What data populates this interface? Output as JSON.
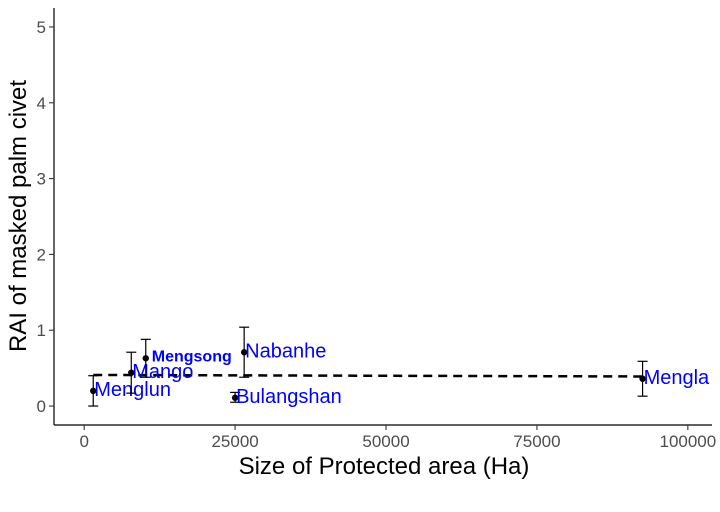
{
  "chart_data": {
    "type": "scatter",
    "title": "",
    "xlabel": "Size of Protected area (Ha)",
    "ylabel": "RAI of masked palm civet",
    "xlim": [
      -5000,
      104000
    ],
    "ylim": [
      -0.25,
      5.25
    ],
    "x_ticks": [
      0,
      25000,
      50000,
      75000,
      100000
    ],
    "x_tick_labels": [
      "0",
      "25000",
      "50000",
      "75000",
      "100000"
    ],
    "y_ticks": [
      0,
      1,
      2,
      3,
      4,
      5
    ],
    "y_tick_labels": [
      "0",
      "1",
      "2",
      "3",
      "4",
      "5"
    ],
    "grid": false,
    "label_color": "#0000ff",
    "points": [
      {
        "label": "Menglun",
        "x": 1500,
        "y": 0.2,
        "ymin": 0.0,
        "ymax": 0.4,
        "bold": false
      },
      {
        "label": "Mango",
        "x": 7800,
        "y": 0.44,
        "ymin": 0.17,
        "ymax": 0.71,
        "bold": false
      },
      {
        "label": "Mengsong",
        "x": 10200,
        "y": 0.63,
        "ymin": 0.38,
        "ymax": 0.88,
        "bold": true
      },
      {
        "label": "Bulangshan",
        "x": 25000,
        "y": 0.11,
        "ymin": 0.05,
        "ymax": 0.18,
        "bold": false
      },
      {
        "label": "Nabanhe",
        "x": 26500,
        "y": 0.71,
        "ymin": 0.38,
        "ymax": 1.04,
        "bold": false
      },
      {
        "label": "Mengla",
        "x": 92500,
        "y": 0.36,
        "ymin": 0.13,
        "ymax": 0.59,
        "bold": false
      }
    ],
    "trend_line": {
      "x": [
        1500,
        92500
      ],
      "y": [
        0.41,
        0.39
      ],
      "style": "dashed"
    }
  }
}
